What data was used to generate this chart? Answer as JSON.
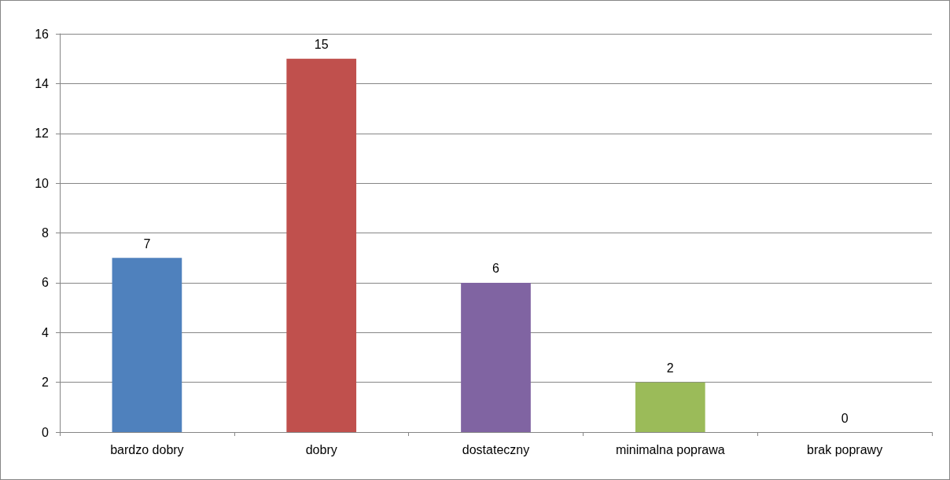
{
  "chart_data": {
    "type": "bar",
    "categories": [
      "bardzo dobry",
      "dobry",
      "dostateczny",
      "minimalna poprawa",
      "brak poprawy"
    ],
    "values": [
      7,
      15,
      6,
      2,
      0
    ],
    "colors": [
      "#4f81bd",
      "#c0504d",
      "#8064a2",
      "#9bbb59",
      "#4bacc6"
    ],
    "ylim": [
      0,
      16
    ],
    "yticks": [
      0,
      2,
      4,
      6,
      8,
      10,
      12,
      14,
      16
    ],
    "grid": "y",
    "data_labels": true
  }
}
